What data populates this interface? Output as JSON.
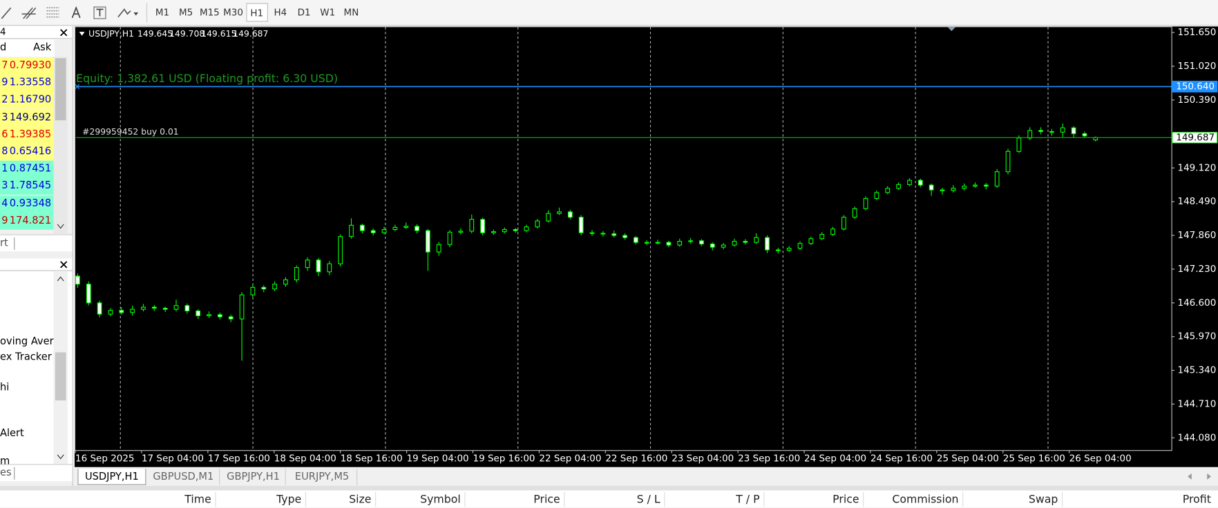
{
  "toolbar": {
    "timeframes": [
      "M1",
      "M5",
      "M15",
      "M30",
      "H1",
      "H4",
      "D1",
      "W1",
      "MN"
    ]
  },
  "market_watch": {
    "title": "4",
    "columns": [
      "d",
      "Ask"
    ],
    "rows": [
      {
        "bid": "7",
        "ask": "0.79930",
        "color": "#e00000",
        "bg": "#ffff80"
      },
      {
        "bid": "9",
        "ask": "1.33558",
        "color": "#0000e0",
        "bg": "#ffff80"
      },
      {
        "bid": "2",
        "ask": "1.16790",
        "color": "#0000e0",
        "bg": "#ffff80"
      },
      {
        "bid": "3",
        "ask": "149.692",
        "color": "#000080",
        "bg": "#ffff80"
      },
      {
        "bid": "6",
        "ask": "1.39385",
        "color": "#e00000",
        "bg": "#ffff80"
      },
      {
        "bid": "8",
        "ask": "0.65416",
        "color": "#0000e0",
        "bg": "#ffff80"
      },
      {
        "bid": "1",
        "ask": "0.87451",
        "color": "#0000e0",
        "bg": "#80ffd0"
      },
      {
        "bid": "3",
        "ask": "1.78545",
        "color": "#0000e0",
        "bg": "#80ffd0"
      },
      {
        "bid": "4",
        "ask": "0.93348",
        "color": "#0000e0",
        "bg": "#80ffd0"
      },
      {
        "bid": "9",
        "ask": "174.821",
        "color": "#c00000",
        "bg": "#80ffd0"
      }
    ],
    "tab": "rt"
  },
  "navigator": {
    "items": [
      "oving Avera",
      "ex Tracker",
      "hi",
      "Alert",
      "m"
    ],
    "tab": "es"
  },
  "chart_data": {
    "type": "candlestick",
    "symbol": "USDJPY,H1",
    "color": "#00ff00",
    "ylim": [
      143.85,
      151.75
    ],
    "yticks": [
      {
        "value": 151.65,
        "label": "151.650"
      },
      {
        "value": 151.02,
        "label": "151.020"
      },
      {
        "value": 150.39,
        "label": "150.390"
      },
      {
        "value": 149.12,
        "label": "149.120"
      },
      {
        "value": 148.49,
        "label": "148.490"
      },
      {
        "value": 147.86,
        "label": "147.860"
      },
      {
        "value": 147.23,
        "label": "147.230"
      },
      {
        "value": 146.6,
        "label": "146.600"
      },
      {
        "value": 145.97,
        "label": "145.970"
      },
      {
        "value": 145.34,
        "label": "145.340"
      },
      {
        "value": 144.71,
        "label": "144.710"
      },
      {
        "value": 144.08,
        "label": "144.080"
      }
    ],
    "x_labels": [
      "16 Sep 2025",
      "17 Sep 04:00",
      "17 Sep 16:00",
      "18 Sep 04:00",
      "18 Sep 16:00",
      "19 Sep 04:00",
      "19 Sep 16:00",
      "22 Sep 04:00",
      "22 Sep 16:00",
      "23 Sep 04:00",
      "23 Sep 16:00",
      "24 Sep 04:00",
      "24 Sep 16:00",
      "25 Sep 04:00",
      "25 Sep 16:00",
      "26 Sep 04:00"
    ],
    "equity_text": "Equity: 1,382.61 USD (Floating profit: 6.30 USD)",
    "order_text": "#299959452 buy 0.01",
    "lines": [
      {
        "value": 150.64,
        "label": "150.640",
        "color": "#1e90ff",
        "label_fill": "#1e90ff",
        "label_text_color": "#ffffff"
      },
      {
        "value": 149.687,
        "label": "149.687",
        "color": "#00c000",
        "label_fill": "#ffffff",
        "label_text_color": "#000000"
      }
    ],
    "candles": [
      [
        147.1,
        147.15,
        146.88,
        146.95
      ],
      [
        146.95,
        147.0,
        146.55,
        146.6
      ],
      [
        146.6,
        146.64,
        146.33,
        146.39
      ],
      [
        146.39,
        146.5,
        146.35,
        146.46
      ],
      [
        146.46,
        146.52,
        146.38,
        146.42
      ],
      [
        146.42,
        146.55,
        146.36,
        146.48
      ],
      [
        146.48,
        146.58,
        146.44,
        146.52
      ],
      [
        146.52,
        146.56,
        146.45,
        146.5
      ],
      [
        146.5,
        146.53,
        146.43,
        146.48
      ],
      [
        146.48,
        146.66,
        146.44,
        146.55
      ],
      [
        146.55,
        146.59,
        146.4,
        146.45
      ],
      [
        146.45,
        146.48,
        146.3,
        146.36
      ],
      [
        146.36,
        146.44,
        146.32,
        146.38
      ],
      [
        146.38,
        146.42,
        146.29,
        146.34
      ],
      [
        146.34,
        146.38,
        146.24,
        146.3
      ],
      [
        146.3,
        146.8,
        145.52,
        146.75
      ],
      [
        146.75,
        146.95,
        146.7,
        146.89
      ],
      [
        146.89,
        146.93,
        146.8,
        146.86
      ],
      [
        146.86,
        147.0,
        146.82,
        146.95
      ],
      [
        146.95,
        147.08,
        146.9,
        147.03
      ],
      [
        147.03,
        147.3,
        146.98,
        147.26
      ],
      [
        147.26,
        147.45,
        147.2,
        147.4
      ],
      [
        147.4,
        147.44,
        147.1,
        147.18
      ],
      [
        147.18,
        147.38,
        147.12,
        147.33
      ],
      [
        147.33,
        147.88,
        147.28,
        147.84
      ],
      [
        147.84,
        148.18,
        147.8,
        148.05
      ],
      [
        148.05,
        148.08,
        147.9,
        147.95
      ],
      [
        147.95,
        147.99,
        147.86,
        147.91
      ],
      [
        147.91,
        148.02,
        147.88,
        147.97
      ],
      [
        147.97,
        148.06,
        147.94,
        148.01
      ],
      [
        148.01,
        148.1,
        147.98,
        148.03
      ],
      [
        148.03,
        148.07,
        147.9,
        147.95
      ],
      [
        147.95,
        147.98,
        147.2,
        147.55
      ],
      [
        147.55,
        147.74,
        147.48,
        147.69
      ],
      [
        147.69,
        147.96,
        147.64,
        147.92
      ],
      [
        147.92,
        147.99,
        147.88,
        147.94
      ],
      [
        147.94,
        148.25,
        147.9,
        148.16
      ],
      [
        148.16,
        148.19,
        147.86,
        147.91
      ],
      [
        147.91,
        147.97,
        147.87,
        147.93
      ],
      [
        147.93,
        148.01,
        147.9,
        147.97
      ],
      [
        147.97,
        148.0,
        147.91,
        147.95
      ],
      [
        147.95,
        148.06,
        147.92,
        148.02
      ],
      [
        148.02,
        148.17,
        147.99,
        148.13
      ],
      [
        148.13,
        148.33,
        148.1,
        148.27
      ],
      [
        148.27,
        148.38,
        148.24,
        148.3
      ],
      [
        148.3,
        148.34,
        148.16,
        148.2
      ],
      [
        148.2,
        148.24,
        147.86,
        147.91
      ],
      [
        147.91,
        147.96,
        147.85,
        147.9
      ],
      [
        147.9,
        147.94,
        147.84,
        147.89
      ],
      [
        147.89,
        147.95,
        147.82,
        147.86
      ],
      [
        147.86,
        147.9,
        147.78,
        147.82
      ],
      [
        147.82,
        147.85,
        147.69,
        147.73
      ],
      [
        147.73,
        147.77,
        147.68,
        147.72
      ],
      [
        147.72,
        147.78,
        147.69,
        147.73
      ],
      [
        147.73,
        147.76,
        147.64,
        147.68
      ],
      [
        147.68,
        147.8,
        147.65,
        147.75
      ],
      [
        147.75,
        147.81,
        147.71,
        147.76
      ],
      [
        147.76,
        147.79,
        147.66,
        147.7
      ],
      [
        147.7,
        147.73,
        147.58,
        147.64
      ],
      [
        147.64,
        147.72,
        147.6,
        147.68
      ],
      [
        147.68,
        147.8,
        147.65,
        147.75
      ],
      [
        147.75,
        147.79,
        147.69,
        147.73
      ],
      [
        147.73,
        147.9,
        147.7,
        147.82
      ],
      [
        147.82,
        147.86,
        147.53,
        147.59
      ],
      [
        147.59,
        147.63,
        147.52,
        147.58
      ],
      [
        147.58,
        147.66,
        147.55,
        147.62
      ],
      [
        147.62,
        147.75,
        147.59,
        147.71
      ],
      [
        147.71,
        147.84,
        147.68,
        147.8
      ],
      [
        147.8,
        147.92,
        147.77,
        147.88
      ],
      [
        147.88,
        148.02,
        147.85,
        147.98
      ],
      [
        147.98,
        148.24,
        147.95,
        148.2
      ],
      [
        148.2,
        148.4,
        148.17,
        148.36
      ],
      [
        148.36,
        148.59,
        148.33,
        148.55
      ],
      [
        148.55,
        148.7,
        148.52,
        148.66
      ],
      [
        148.66,
        148.78,
        148.63,
        148.74
      ],
      [
        148.74,
        148.85,
        148.71,
        148.81
      ],
      [
        148.81,
        148.93,
        148.78,
        148.89
      ],
      [
        148.89,
        148.92,
        148.76,
        148.8
      ],
      [
        148.8,
        148.83,
        148.6,
        148.71
      ],
      [
        148.71,
        148.75,
        148.62,
        148.7
      ],
      [
        148.7,
        148.8,
        148.66,
        148.74
      ],
      [
        148.74,
        148.83,
        148.7,
        148.78
      ],
      [
        148.78,
        148.85,
        148.75,
        148.8
      ],
      [
        148.8,
        148.84,
        148.72,
        148.78
      ],
      [
        148.78,
        149.1,
        148.75,
        149.05
      ],
      [
        149.05,
        149.48,
        149.0,
        149.43
      ],
      [
        149.43,
        149.73,
        149.4,
        149.68
      ],
      [
        149.68,
        149.88,
        149.64,
        149.82
      ],
      [
        149.82,
        149.88,
        149.75,
        149.8
      ],
      [
        149.8,
        149.85,
        149.72,
        149.79
      ],
      [
        149.79,
        149.95,
        149.7,
        149.87
      ],
      [
        149.87,
        149.9,
        149.68,
        149.76
      ],
      [
        149.76,
        149.8,
        149.69,
        149.72
      ],
      [
        149.645,
        149.708,
        149.615,
        149.687
      ]
    ]
  },
  "tabs": [
    "USDJPY,H1",
    "GBPUSD,M1",
    "GBPJPY,H1",
    "EURJPY,M5"
  ],
  "trade_table": {
    "headers": [
      "Time",
      "Type",
      "Size",
      "Symbol",
      "Price",
      "S / L",
      "T / P",
      "Price",
      "Commission",
      "Swap",
      "Profit"
    ]
  }
}
